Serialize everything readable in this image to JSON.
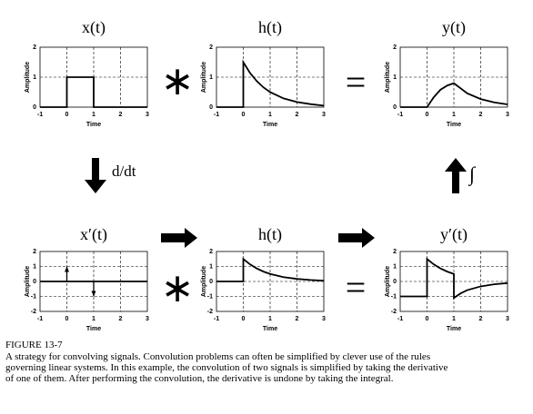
{
  "chart_data": [
    {
      "type": "line",
      "title": "x(t)",
      "xlabel": "Time",
      "ylabel": "Amplitude",
      "xlim": [
        -1,
        3
      ],
      "ylim": [
        0,
        2
      ],
      "xticks": [
        -1,
        0,
        1,
        2,
        3
      ],
      "yticks": [
        0,
        1,
        2
      ],
      "grid": true,
      "color": "#000000",
      "x": [
        -1,
        0,
        0,
        1,
        1,
        3
      ],
      "values": [
        0,
        0,
        1,
        1,
        0,
        0
      ]
    },
    {
      "type": "line",
      "title": "h(t)",
      "xlabel": "Time",
      "ylabel": "Amplitude",
      "xlim": [
        -1,
        3
      ],
      "ylim": [
        0,
        2
      ],
      "xticks": [
        -1,
        0,
        1,
        2,
        3
      ],
      "yticks": [
        0,
        1,
        2
      ],
      "grid": true,
      "color": "#000000",
      "x": [
        -1,
        0,
        0,
        0.25,
        0.5,
        0.75,
        1,
        1.5,
        2,
        2.5,
        3
      ],
      "values": [
        0,
        0,
        1.5,
        1.14,
        0.87,
        0.66,
        0.5,
        0.29,
        0.17,
        0.1,
        0.05
      ]
    },
    {
      "type": "line",
      "title": "y(t)",
      "xlabel": "Time",
      "ylabel": "Amplitude",
      "xlim": [
        -1,
        3
      ],
      "ylim": [
        0,
        2
      ],
      "xticks": [
        -1,
        0,
        1,
        2,
        3
      ],
      "yticks": [
        0,
        1,
        2
      ],
      "grid": true,
      "color": "#000000",
      "x": [
        -1,
        0,
        0.25,
        0.5,
        0.75,
        1,
        1.5,
        2,
        2.5,
        3
      ],
      "values": [
        0,
        0,
        0.33,
        0.58,
        0.72,
        0.8,
        0.46,
        0.27,
        0.16,
        0.09
      ]
    },
    {
      "type": "impulse",
      "title": "x′(t)",
      "xlabel": "Time",
      "ylabel": "Amplitude",
      "xlim": [
        -1,
        3
      ],
      "ylim": [
        -2,
        2
      ],
      "xticks": [
        -1,
        0,
        1,
        2,
        3
      ],
      "yticks": [
        -2,
        -1,
        0,
        1,
        2
      ],
      "grid": true,
      "color": "#000000",
      "x": [
        -1,
        3
      ],
      "values": [
        0,
        0
      ],
      "impulse_x": [
        0,
        1
      ],
      "impulse_values": [
        1,
        -1
      ]
    },
    {
      "type": "line",
      "title": "h(t)",
      "xlabel": "Time",
      "ylabel": "Amplitude",
      "xlim": [
        -1,
        3
      ],
      "ylim": [
        -2,
        2
      ],
      "xticks": [
        -1,
        0,
        1,
        2,
        3
      ],
      "yticks": [
        -2,
        -1,
        0,
        1,
        2
      ],
      "grid": true,
      "color": "#000000",
      "x": [
        -1,
        0,
        0,
        0.25,
        0.5,
        0.75,
        1,
        1.5,
        2,
        2.5,
        3
      ],
      "values": [
        0,
        0,
        1.5,
        1.14,
        0.87,
        0.66,
        0.5,
        0.29,
        0.17,
        0.1,
        0.05
      ]
    },
    {
      "type": "line",
      "title": "y′(t)",
      "xlabel": "Time",
      "ylabel": "Amplitude",
      "xlim": [
        -1,
        3
      ],
      "ylim": [
        -2,
        2
      ],
      "xticks": [
        -1,
        0,
        1,
        2,
        3
      ],
      "yticks": [
        -2,
        -1,
        0,
        1,
        2
      ],
      "grid": true,
      "color": "#000000",
      "x": [
        -1,
        0,
        0,
        0.25,
        0.5,
        0.75,
        1,
        1,
        1.25,
        1.5,
        2,
        2.5,
        3
      ],
      "values": [
        -1,
        -1,
        1.5,
        1.14,
        0.87,
        0.66,
        0.5,
        -1.1,
        -0.8,
        -0.58,
        -0.33,
        -0.19,
        -0.11
      ]
    }
  ],
  "operators": {
    "convolve": "∗",
    "equals": "=",
    "derivative": "d/dt",
    "integral": "∫"
  },
  "caption": {
    "label": "FIGURE 13-7",
    "lines": [
      "A strategy for convolving signals.  Convolution problems can often be simplified by clever use of the rules",
      "governing linear systems.  In this example, the convolution of two signals is simplified by taking the derivative",
      "of one of them.  After performing the convolution, the derivative is undone by taking the integral."
    ]
  }
}
